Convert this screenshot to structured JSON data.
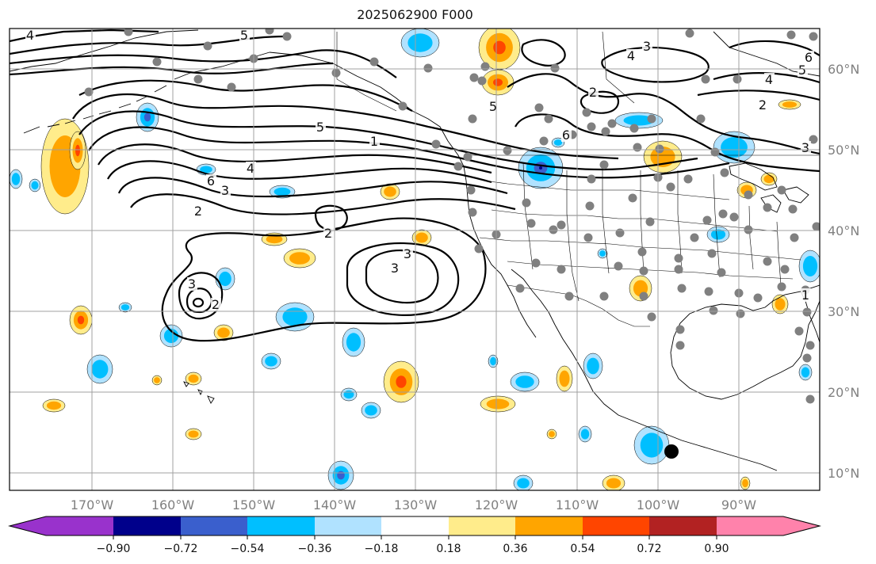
{
  "title": "2025062900 F000",
  "colors": {
    "background": "#ffffff",
    "gridline": "#a0a0a0",
    "coastline": "#000000",
    "contour": "#000000",
    "station_dot": "#808080",
    "tick_text": "#808080",
    "highlight_marker": "#000000"
  },
  "longitude_ticks": [
    "170°W",
    "160°W",
    "150°W",
    "140°W",
    "130°W",
    "120°W",
    "110°W",
    "100°W",
    "90°W"
  ],
  "latitude_ticks": [
    "60°N",
    "50°N",
    "40°N",
    "30°N",
    "20°N",
    "10°N"
  ],
  "contour_labels": [
    "4",
    "5",
    "5",
    "5",
    "4",
    "6",
    "3",
    "2",
    "1",
    "2",
    "3",
    "3",
    "2",
    "2",
    "3",
    "6",
    "4",
    "2",
    "3",
    "2",
    "6",
    "4",
    "5",
    "3",
    "1"
  ],
  "colorbar": {
    "tick_labels": [
      "−0.90",
      "−0.72",
      "−0.54",
      "−0.36",
      "−0.18",
      "0.18",
      "0.36",
      "0.54",
      "0.72",
      "0.90"
    ],
    "segments": [
      "#9932cc",
      "#00008b",
      "#3a5fcd",
      "#00bfff",
      "#b0e2ff",
      "#ffffff",
      "#ffec8b",
      "#ffa500",
      "#ff4500",
      "#b22222",
      "#ff82ab"
    ],
    "extend": "both"
  },
  "shading_levels": {
    "negative": [
      "#b0e2ff",
      "#00bfff",
      "#3a5fcd",
      "#00008b",
      "#9932cc"
    ],
    "positive": [
      "#ffec8b",
      "#ffa500",
      "#ff4500",
      "#b22222",
      "#ff82ab"
    ]
  }
}
